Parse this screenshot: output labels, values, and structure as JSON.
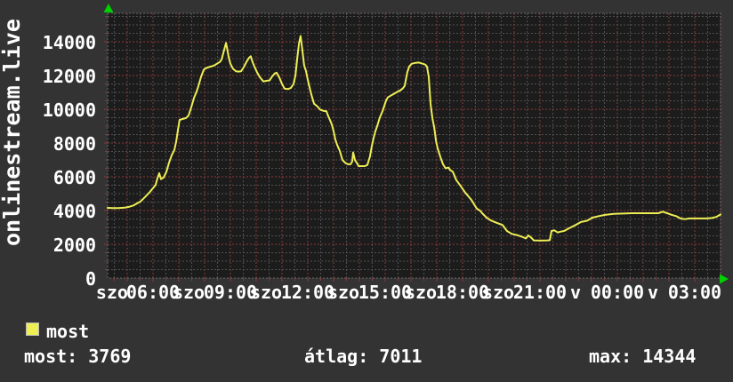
{
  "colors": {
    "background": "#333333",
    "plot_background": "#1c1c1c",
    "grid_minor": "#505050",
    "grid_major": "#8a3a3a",
    "line": "#eeee55",
    "text": "#ffffff",
    "arrow": "#00cf00",
    "legend_border": "#b9b9b9"
  },
  "legend": {
    "label": "most",
    "swatch_color": "#eeee55"
  },
  "stats": [
    {
      "label": "most:",
      "value": "3769",
      "text": "most: 3769"
    },
    {
      "label": "átlag:",
      "value": "7011",
      "text": "átlag: 7011"
    },
    {
      "label": "max:",
      "value": "14344",
      "text": "max: 14344"
    }
  ],
  "chart_data": {
    "type": "line",
    "title": "onlinestream.live",
    "xlabel": "",
    "ylabel": "",
    "x_unit": "hours since Saturday 00:00 (szo = Saturday, v = Sunday)",
    "x_range": [
      4.24,
      28.0
    ],
    "ylim": [
      0,
      15700
    ],
    "grid": {
      "y_minor_step": 500,
      "y_major_step": 2000,
      "x_minor_step_h": 0.5,
      "x_major_step_h": 1
    },
    "legend_position": "bottom-left",
    "y_ticks": [
      {
        "label": "0",
        "value": 0
      },
      {
        "label": "2000",
        "value": 2000
      },
      {
        "label": "4000",
        "value": 4000
      },
      {
        "label": "6000",
        "value": 6000
      },
      {
        "label": "8000",
        "value": 8000
      },
      {
        "label": "10000",
        "value": 10000
      },
      {
        "label": "12000",
        "value": 12000
      },
      {
        "label": "14000",
        "value": 14000
      }
    ],
    "x_hour_ticks": [
      {
        "label": "06:00",
        "hour": 6
      },
      {
        "label": "09:00",
        "hour": 9
      },
      {
        "label": "12:00",
        "hour": 12
      },
      {
        "label": "15:00",
        "hour": 15
      },
      {
        "label": "18:00",
        "hour": 18
      },
      {
        "label": "21:00",
        "hour": 21
      },
      {
        "label": "00:00",
        "hour": 24
      },
      {
        "label": "03:00",
        "hour": 27
      }
    ],
    "x_day_labels": [
      {
        "label": "szo",
        "hour": 4.41
      },
      {
        "label": "szo",
        "hour": 7.38
      },
      {
        "label": "szo",
        "hour": 10.38
      },
      {
        "label": "szo",
        "hour": 13.38
      },
      {
        "label": "szo",
        "hour": 16.38
      },
      {
        "label": "szo",
        "hour": 19.38
      },
      {
        "label": "v",
        "hour": 22.38
      },
      {
        "label": "v",
        "hour": 25.38
      }
    ],
    "series": [
      {
        "name": "most",
        "color": "#eeee55",
        "points": [
          [
            4.24,
            4160
          ],
          [
            4.45,
            4140
          ],
          [
            4.66,
            4150
          ],
          [
            4.9,
            4170
          ],
          [
            5.1,
            4230
          ],
          [
            5.24,
            4300
          ],
          [
            5.38,
            4420
          ],
          [
            5.52,
            4540
          ],
          [
            5.69,
            4800
          ],
          [
            5.86,
            5070
          ],
          [
            6.0,
            5330
          ],
          [
            6.1,
            5510
          ],
          [
            6.17,
            5900
          ],
          [
            6.24,
            6210
          ],
          [
            6.31,
            5860
          ],
          [
            6.41,
            5950
          ],
          [
            6.52,
            6300
          ],
          [
            6.62,
            6830
          ],
          [
            6.72,
            7260
          ],
          [
            6.83,
            7600
          ],
          [
            6.9,
            8100
          ],
          [
            6.97,
            8800
          ],
          [
            7.03,
            9370
          ],
          [
            7.14,
            9420
          ],
          [
            7.28,
            9480
          ],
          [
            7.38,
            9630
          ],
          [
            7.48,
            10100
          ],
          [
            7.59,
            10680
          ],
          [
            7.69,
            11050
          ],
          [
            7.76,
            11370
          ],
          [
            7.86,
            11900
          ],
          [
            7.97,
            12350
          ],
          [
            8.07,
            12450
          ],
          [
            8.17,
            12500
          ],
          [
            8.28,
            12550
          ],
          [
            8.38,
            12600
          ],
          [
            8.48,
            12700
          ],
          [
            8.59,
            12800
          ],
          [
            8.66,
            12950
          ],
          [
            8.72,
            13300
          ],
          [
            8.79,
            13700
          ],
          [
            8.83,
            13930
          ],
          [
            8.87,
            13650
          ],
          [
            8.93,
            13100
          ],
          [
            9.0,
            12700
          ],
          [
            9.1,
            12400
          ],
          [
            9.21,
            12260
          ],
          [
            9.31,
            12230
          ],
          [
            9.41,
            12250
          ],
          [
            9.52,
            12500
          ],
          [
            9.62,
            12800
          ],
          [
            9.72,
            13050
          ],
          [
            9.79,
            13140
          ],
          [
            9.86,
            12800
          ],
          [
            9.93,
            12530
          ],
          [
            10.03,
            12200
          ],
          [
            10.14,
            11900
          ],
          [
            10.28,
            11650
          ],
          [
            10.41,
            11690
          ],
          [
            10.52,
            11710
          ],
          [
            10.62,
            11950
          ],
          [
            10.72,
            12120
          ],
          [
            10.79,
            12170
          ],
          [
            10.9,
            11870
          ],
          [
            11.0,
            11500
          ],
          [
            11.1,
            11220
          ],
          [
            11.24,
            11200
          ],
          [
            11.34,
            11260
          ],
          [
            11.45,
            11500
          ],
          [
            11.52,
            12000
          ],
          [
            11.59,
            13000
          ],
          [
            11.66,
            13900
          ],
          [
            11.72,
            14344
          ],
          [
            11.79,
            13500
          ],
          [
            11.86,
            12600
          ],
          [
            11.93,
            12260
          ],
          [
            12.0,
            11740
          ],
          [
            12.1,
            11100
          ],
          [
            12.17,
            10700
          ],
          [
            12.24,
            10330
          ],
          [
            12.38,
            10160
          ],
          [
            12.48,
            9980
          ],
          [
            12.62,
            9900
          ],
          [
            12.72,
            9890
          ],
          [
            12.79,
            9600
          ],
          [
            12.86,
            9370
          ],
          [
            12.93,
            9100
          ],
          [
            13.0,
            8700
          ],
          [
            13.07,
            8200
          ],
          [
            13.14,
            7880
          ],
          [
            13.24,
            7530
          ],
          [
            13.34,
            7000
          ],
          [
            13.45,
            6830
          ],
          [
            13.55,
            6740
          ],
          [
            13.66,
            6740
          ],
          [
            13.72,
            6900
          ],
          [
            13.76,
            7440
          ],
          [
            13.83,
            6980
          ],
          [
            13.9,
            6830
          ],
          [
            13.97,
            6630
          ],
          [
            14.1,
            6630
          ],
          [
            14.21,
            6630
          ],
          [
            14.31,
            6700
          ],
          [
            14.41,
            7200
          ],
          [
            14.48,
            7800
          ],
          [
            14.55,
            8300
          ],
          [
            14.62,
            8700
          ],
          [
            14.69,
            9000
          ],
          [
            14.79,
            9500
          ],
          [
            14.9,
            9900
          ],
          [
            15.03,
            10500
          ],
          [
            15.1,
            10700
          ],
          [
            15.24,
            10830
          ],
          [
            15.38,
            10950
          ],
          [
            15.48,
            11040
          ],
          [
            15.59,
            11120
          ],
          [
            15.69,
            11250
          ],
          [
            15.76,
            11400
          ],
          [
            15.86,
            12200
          ],
          [
            15.93,
            12530
          ],
          [
            16.03,
            12700
          ],
          [
            16.17,
            12750
          ],
          [
            16.31,
            12770
          ],
          [
            16.45,
            12700
          ],
          [
            16.55,
            12650
          ],
          [
            16.62,
            12530
          ],
          [
            16.69,
            11910
          ],
          [
            16.76,
            10330
          ],
          [
            16.83,
            9460
          ],
          [
            16.9,
            8930
          ],
          [
            16.97,
            8140
          ],
          [
            17.03,
            7700
          ],
          [
            17.14,
            7170
          ],
          [
            17.24,
            6740
          ],
          [
            17.34,
            6500
          ],
          [
            17.45,
            6550
          ],
          [
            17.52,
            6400
          ],
          [
            17.62,
            6300
          ],
          [
            17.76,
            5800
          ],
          [
            17.9,
            5510
          ],
          [
            18.1,
            5070
          ],
          [
            18.34,
            4630
          ],
          [
            18.55,
            4110
          ],
          [
            18.69,
            3980
          ],
          [
            18.76,
            3840
          ],
          [
            18.93,
            3580
          ],
          [
            19.1,
            3410
          ],
          [
            19.31,
            3280
          ],
          [
            19.55,
            3140
          ],
          [
            19.72,
            2790
          ],
          [
            19.9,
            2620
          ],
          [
            20.14,
            2530
          ],
          [
            20.31,
            2440
          ],
          [
            20.45,
            2350
          ],
          [
            20.55,
            2520
          ],
          [
            20.66,
            2400
          ],
          [
            20.76,
            2230
          ],
          [
            21.1,
            2220
          ],
          [
            21.28,
            2230
          ],
          [
            21.38,
            2240
          ],
          [
            21.45,
            2790
          ],
          [
            21.55,
            2830
          ],
          [
            21.69,
            2700
          ],
          [
            21.79,
            2750
          ],
          [
            21.93,
            2790
          ],
          [
            22.14,
            2960
          ],
          [
            22.38,
            3140
          ],
          [
            22.59,
            3320
          ],
          [
            22.83,
            3400
          ],
          [
            23.03,
            3580
          ],
          [
            23.28,
            3670
          ],
          [
            23.52,
            3740
          ],
          [
            23.86,
            3800
          ],
          [
            24.21,
            3820
          ],
          [
            24.55,
            3840
          ],
          [
            24.72,
            3840
          ],
          [
            25.07,
            3840
          ],
          [
            25.41,
            3840
          ],
          [
            25.59,
            3840
          ],
          [
            25.76,
            3930
          ],
          [
            25.93,
            3840
          ],
          [
            26.1,
            3750
          ],
          [
            26.28,
            3670
          ],
          [
            26.45,
            3530
          ],
          [
            26.62,
            3490
          ],
          [
            26.79,
            3530
          ],
          [
            27.14,
            3530
          ],
          [
            27.48,
            3530
          ],
          [
            27.66,
            3560
          ],
          [
            27.83,
            3620
          ],
          [
            28.0,
            3769
          ]
        ]
      }
    ]
  }
}
